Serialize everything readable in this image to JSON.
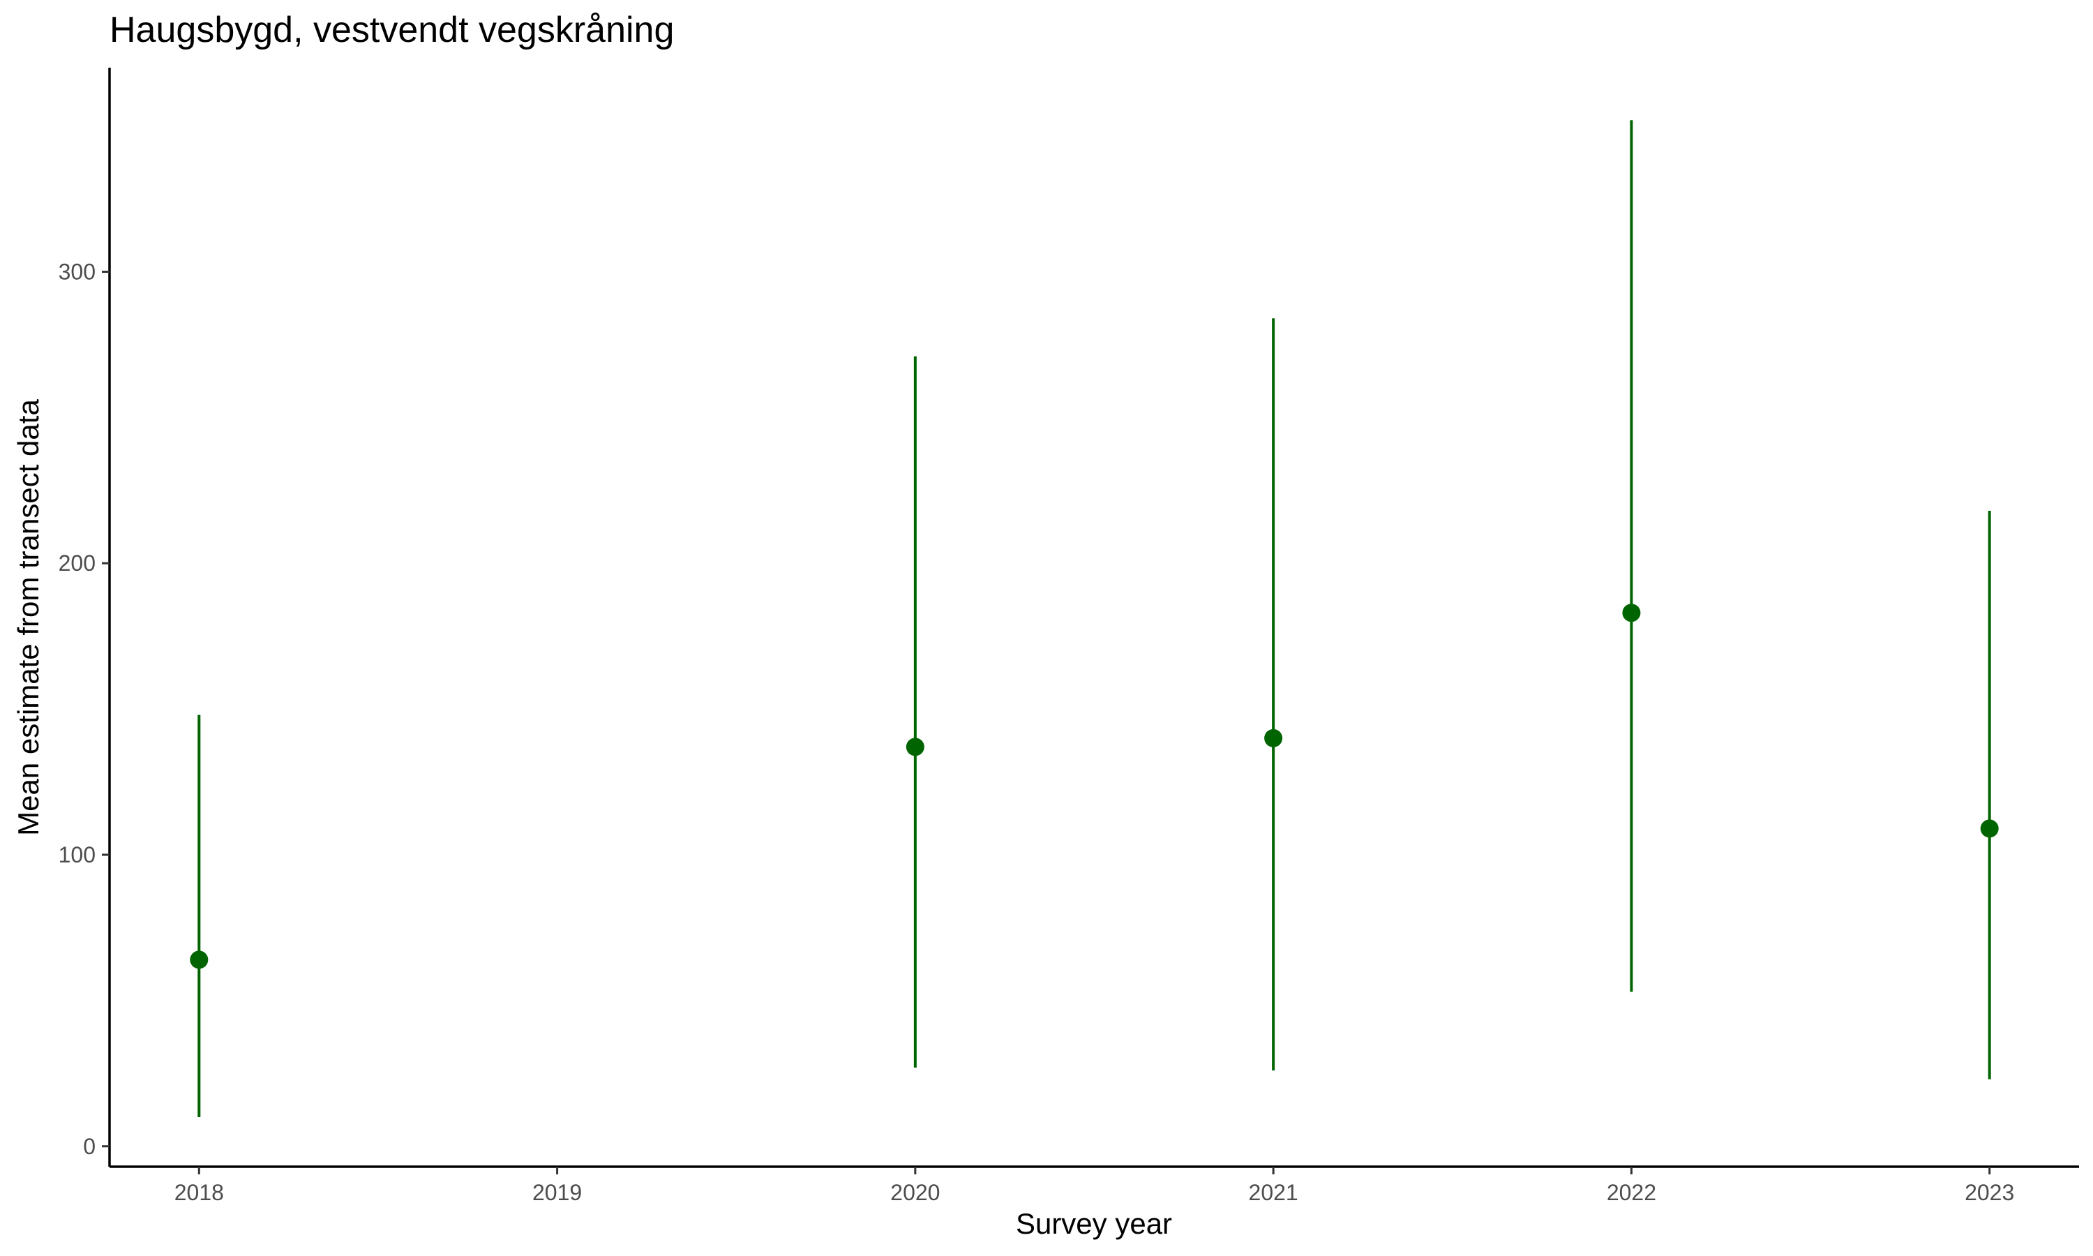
{
  "chart_data": {
    "type": "scatter",
    "title": "Haugsbygd, vestvendt vegskråning",
    "xlabel": "Survey year",
    "ylabel": "Mean estimate from transect data",
    "x_ticks": [
      "2018",
      "2019",
      "2020",
      "2021",
      "2022",
      "2023"
    ],
    "y_ticks": [
      0,
      100,
      200,
      300
    ],
    "xlim": [
      2017.75,
      2023.25
    ],
    "ylim": [
      -7,
      370
    ],
    "grid": false,
    "color": "#006400",
    "points": [
      {
        "x": 2018,
        "y": 64,
        "lower": 10,
        "upper": 148
      },
      {
        "x": 2020,
        "y": 137,
        "lower": 27,
        "upper": 271
      },
      {
        "x": 2021,
        "y": 140,
        "lower": 26,
        "upper": 284
      },
      {
        "x": 2022,
        "y": 183,
        "lower": 53,
        "upper": 352
      },
      {
        "x": 2023,
        "y": 109,
        "lower": 23,
        "upper": 218
      }
    ]
  }
}
